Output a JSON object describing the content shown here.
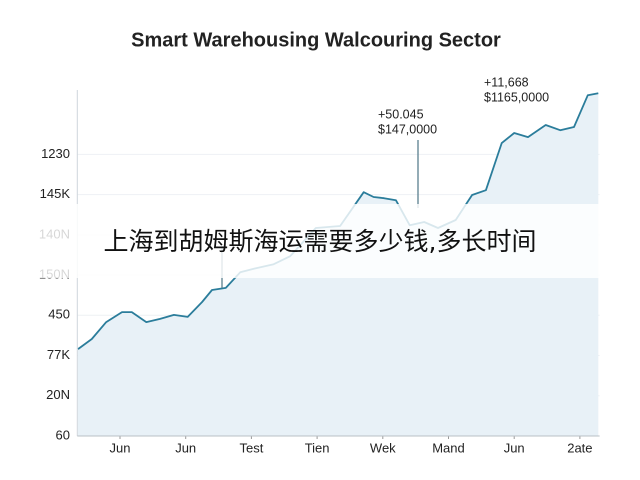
{
  "chart_data": {
    "type": "area",
    "title": "Smart Warehousing Walcouring Sector",
    "overlay_text": "上海到胡姆斯海运需要多少钱,多长时间",
    "annotations": [
      {
        "lines": [
          "+50.045",
          "$147,0000"
        ]
      },
      {
        "lines": [
          "+11,668",
          "$1165,0000"
        ]
      }
    ],
    "x": [
      0.36,
      0.57,
      0.79,
      1.03,
      1.18,
      1.4,
      1.61,
      1.82,
      2.03,
      2.25,
      2.4,
      2.61,
      2.83,
      3.07,
      3.34,
      3.59,
      3.98,
      4.35,
      4.71,
      4.86,
      5.02,
      5.2,
      5.41,
      5.63,
      5.84,
      6.11,
      6.36,
      6.57,
      6.81,
      7.0,
      7.21,
      7.48,
      7.7,
      7.91,
      8.12,
      8.28
    ],
    "values": [
      2.16,
      2.41,
      2.83,
      3.08,
      3.08,
      2.83,
      2.91,
      3.01,
      2.96,
      3.33,
      3.63,
      3.68,
      4.07,
      4.17,
      4.27,
      4.47,
      5.17,
      5.22,
      6.06,
      5.94,
      5.91,
      5.86,
      5.24,
      5.32,
      5.17,
      5.37,
      5.99,
      6.11,
      7.28,
      7.53,
      7.43,
      7.73,
      7.6,
      7.68,
      8.47,
      8.52
    ],
    "color": "#2b7d9b",
    "fill_color": "#e8f1f7",
    "xlim": [
      0.35,
      8.3
    ],
    "xticks": [
      {
        "value": 1,
        "label": "Jun"
      },
      {
        "value": 2,
        "label": "Jun"
      },
      {
        "value": 3,
        "label": "Test"
      },
      {
        "value": 4,
        "label": "Tien"
      },
      {
        "value": 5,
        "label": "Wek"
      },
      {
        "value": 6,
        "label": "Mand"
      },
      {
        "value": 7,
        "label": "Jun"
      },
      {
        "value": 8,
        "label": "2ate"
      }
    ],
    "ylim": [
      0,
      8.6
    ],
    "yticks": [
      {
        "value": 0,
        "label": "60"
      },
      {
        "value": 1,
        "label": "20N"
      },
      {
        "value": 2,
        "label": "77K"
      },
      {
        "value": 3,
        "label": "450"
      },
      {
        "value": 4,
        "label": "150N"
      },
      {
        "value": 5,
        "label": "140N"
      },
      {
        "value": 6,
        "label": "145K"
      },
      {
        "value": 7,
        "label": "1230"
      }
    ],
    "grid": true
  }
}
